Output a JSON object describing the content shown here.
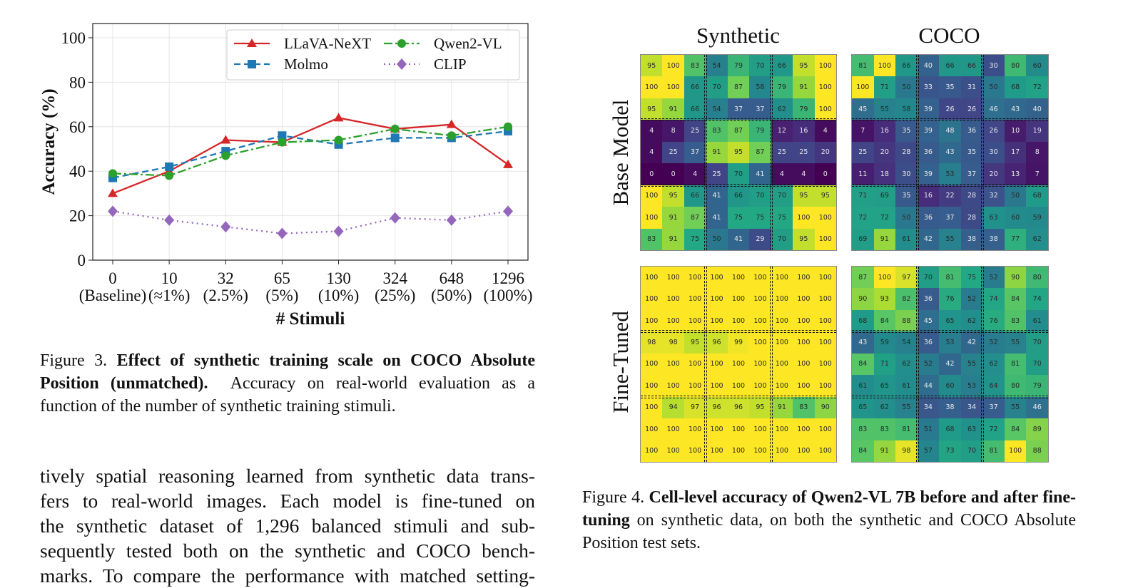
{
  "chart_data": [
    {
      "type": "line",
      "title": "",
      "xlabel": "# Stimuli",
      "ylabel": "Accuracy (%)",
      "ylim": [
        0,
        100
      ],
      "yticks": [
        0,
        20,
        40,
        60,
        80,
        100
      ],
      "grid": true,
      "legend_position": "top-right",
      "categories": [
        "0",
        "10",
        "32",
        "65",
        "130",
        "324",
        "648",
        "1296"
      ],
      "category_sublabels": [
        "(Baseline)",
        "(≈1%)",
        "(2.5%)",
        "(5%)",
        "(10%)",
        "(25%)",
        "(50%)",
        "(100%)"
      ],
      "series": [
        {
          "name": "LLaVA-NeXT",
          "color": "#d62728",
          "marker": "triangle",
          "linestyle": "solid",
          "values": [
            30,
            40,
            54,
            53,
            64,
            59,
            61,
            43
          ]
        },
        {
          "name": "Molmo",
          "color": "#1f77b4",
          "marker": "square",
          "linestyle": "dashed",
          "values": [
            37,
            42,
            49,
            56,
            52,
            55,
            55,
            58
          ]
        },
        {
          "name": "Qwen2-VL",
          "color": "#2ca02c",
          "marker": "circle",
          "linestyle": "dashdot",
          "values": [
            39,
            38,
            47,
            53,
            54,
            59,
            56,
            60
          ]
        },
        {
          "name": "CLIP",
          "color": "#9467bd",
          "marker": "diamond",
          "linestyle": "dotted",
          "values": [
            22,
            18,
            15,
            12,
            13,
            19,
            18,
            22
          ]
        }
      ]
    },
    {
      "type": "heatmap",
      "title": "Cell-level accuracy of Qwen2-VL 7B",
      "colormap": "viridis",
      "vrange": [
        0,
        100
      ],
      "column_titles": [
        "Synthetic",
        "COCO"
      ],
      "row_titles": [
        "Base Model",
        "Fine-Tuned"
      ],
      "panels": [
        {
          "row": "Base Model",
          "col": "Synthetic",
          "values": [
            [
              95,
              100,
              83,
              54,
              79,
              70,
              66,
              95,
              100
            ],
            [
              100,
              100,
              66,
              70,
              87,
              58,
              79,
              91,
              100
            ],
            [
              95,
              91,
              66,
              54,
              37,
              37,
              62,
              79,
              100
            ],
            [
              4,
              8,
              25,
              83,
              87,
              79,
              12,
              16,
              4
            ],
            [
              4,
              25,
              37,
              91,
              95,
              87,
              25,
              25,
              20
            ],
            [
              0,
              0,
              4,
              25,
              70,
              41,
              4,
              4,
              0
            ],
            [
              100,
              95,
              66,
              41,
              66,
              70,
              70,
              95,
              95
            ],
            [
              100,
              91,
              87,
              41,
              75,
              75,
              75,
              100,
              100
            ],
            [
              83,
              91,
              75,
              50,
              41,
              29,
              70,
              95,
              100
            ]
          ]
        },
        {
          "row": "Base Model",
          "col": "COCO",
          "values": [
            [
              81,
              100,
              66,
              40,
              66,
              66,
              30,
              80,
              60
            ],
            [
              100,
              71,
              50,
              33,
              35,
              31,
              50,
              68,
              72
            ],
            [
              45,
              55,
              58,
              39,
              26,
              26,
              46,
              43,
              40
            ],
            [
              7,
              16,
              35,
              39,
              48,
              36,
              26,
              10,
              19
            ],
            [
              25,
              20,
              28,
              36,
              43,
              35,
              30,
              17,
              8
            ],
            [
              11,
              18,
              30,
              39,
              53,
              37,
              20,
              13,
              7
            ],
            [
              71,
              69,
              35,
              16,
              22,
              28,
              32,
              50,
              68
            ],
            [
              72,
              72,
              50,
              36,
              37,
              28,
              63,
              60,
              59
            ],
            [
              69,
              91,
              61,
              42,
              55,
              38,
              38,
              77,
              62
            ]
          ]
        },
        {
          "row": "Fine-Tuned",
          "col": "Synthetic",
          "values": [
            [
              100,
              100,
              100,
              100,
              100,
              100,
              100,
              100,
              100
            ],
            [
              100,
              100,
              100,
              100,
              100,
              100,
              100,
              100,
              100
            ],
            [
              100,
              100,
              100,
              100,
              100,
              100,
              100,
              100,
              100
            ],
            [
              98,
              98,
              95,
              96,
              99,
              100,
              100,
              100,
              100
            ],
            [
              100,
              100,
              100,
              100,
              100,
              100,
              100,
              100,
              100
            ],
            [
              100,
              100,
              100,
              100,
              100,
              100,
              100,
              100,
              100
            ],
            [
              100,
              94,
              97,
              96,
              96,
              95,
              91,
              83,
              90
            ],
            [
              100,
              100,
              100,
              100,
              100,
              100,
              100,
              100,
              100
            ],
            [
              100,
              100,
              100,
              100,
              100,
              100,
              100,
              100,
              100
            ]
          ]
        },
        {
          "row": "Fine-Tuned",
          "col": "COCO",
          "values": [
            [
              87,
              100,
              97,
              70,
              81,
              75,
              52,
              90,
              80
            ],
            [
              90,
              93,
              82,
              36,
              76,
              52,
              74,
              84,
              74
            ],
            [
              68,
              84,
              88,
              45,
              65,
              62,
              76,
              83,
              61
            ],
            [
              43,
              59,
              54,
              36,
              53,
              42,
              52,
              55,
              70
            ],
            [
              84,
              71,
              62,
              52,
              42,
              55,
              62,
              81,
              70
            ],
            [
              61,
              65,
              61,
              44,
              60,
              53,
              64,
              80,
              79
            ],
            [
              65,
              62,
              55,
              34,
              38,
              34,
              37,
              55,
              46
            ],
            [
              83,
              83,
              81,
              51,
              68,
              63,
              72,
              84,
              89
            ],
            [
              84,
              91,
              98,
              57,
              73,
              70,
              81,
              100,
              88
            ]
          ]
        }
      ]
    }
  ],
  "figure3": {
    "prefix": "Figure 3. ",
    "bold": "Effect of synthetic training scale on COCO Absolute Position (unmatched).",
    "rest": "  Accuracy on real-world evaluation as a function of the number of synthetic training stimuli."
  },
  "figure4": {
    "prefix": "Figure 4. ",
    "bold1": "Cell-level accuracy of Qwen2-VL 7B before and after fine-tuning",
    "rest": " on synthetic data, on both the synthetic and COCO Absolute Position test sets."
  },
  "body_lines": [
    "tively spatial reasoning learned from synthetic data trans-",
    "fers to real-world images.  Each model is fine-tuned on",
    "the synthetic dataset of 1,296 balanced stimuli and sub-",
    "sequently tested both on the synthetic and COCO bench-",
    "marks. To compare the performance with matched setting-"
  ]
}
